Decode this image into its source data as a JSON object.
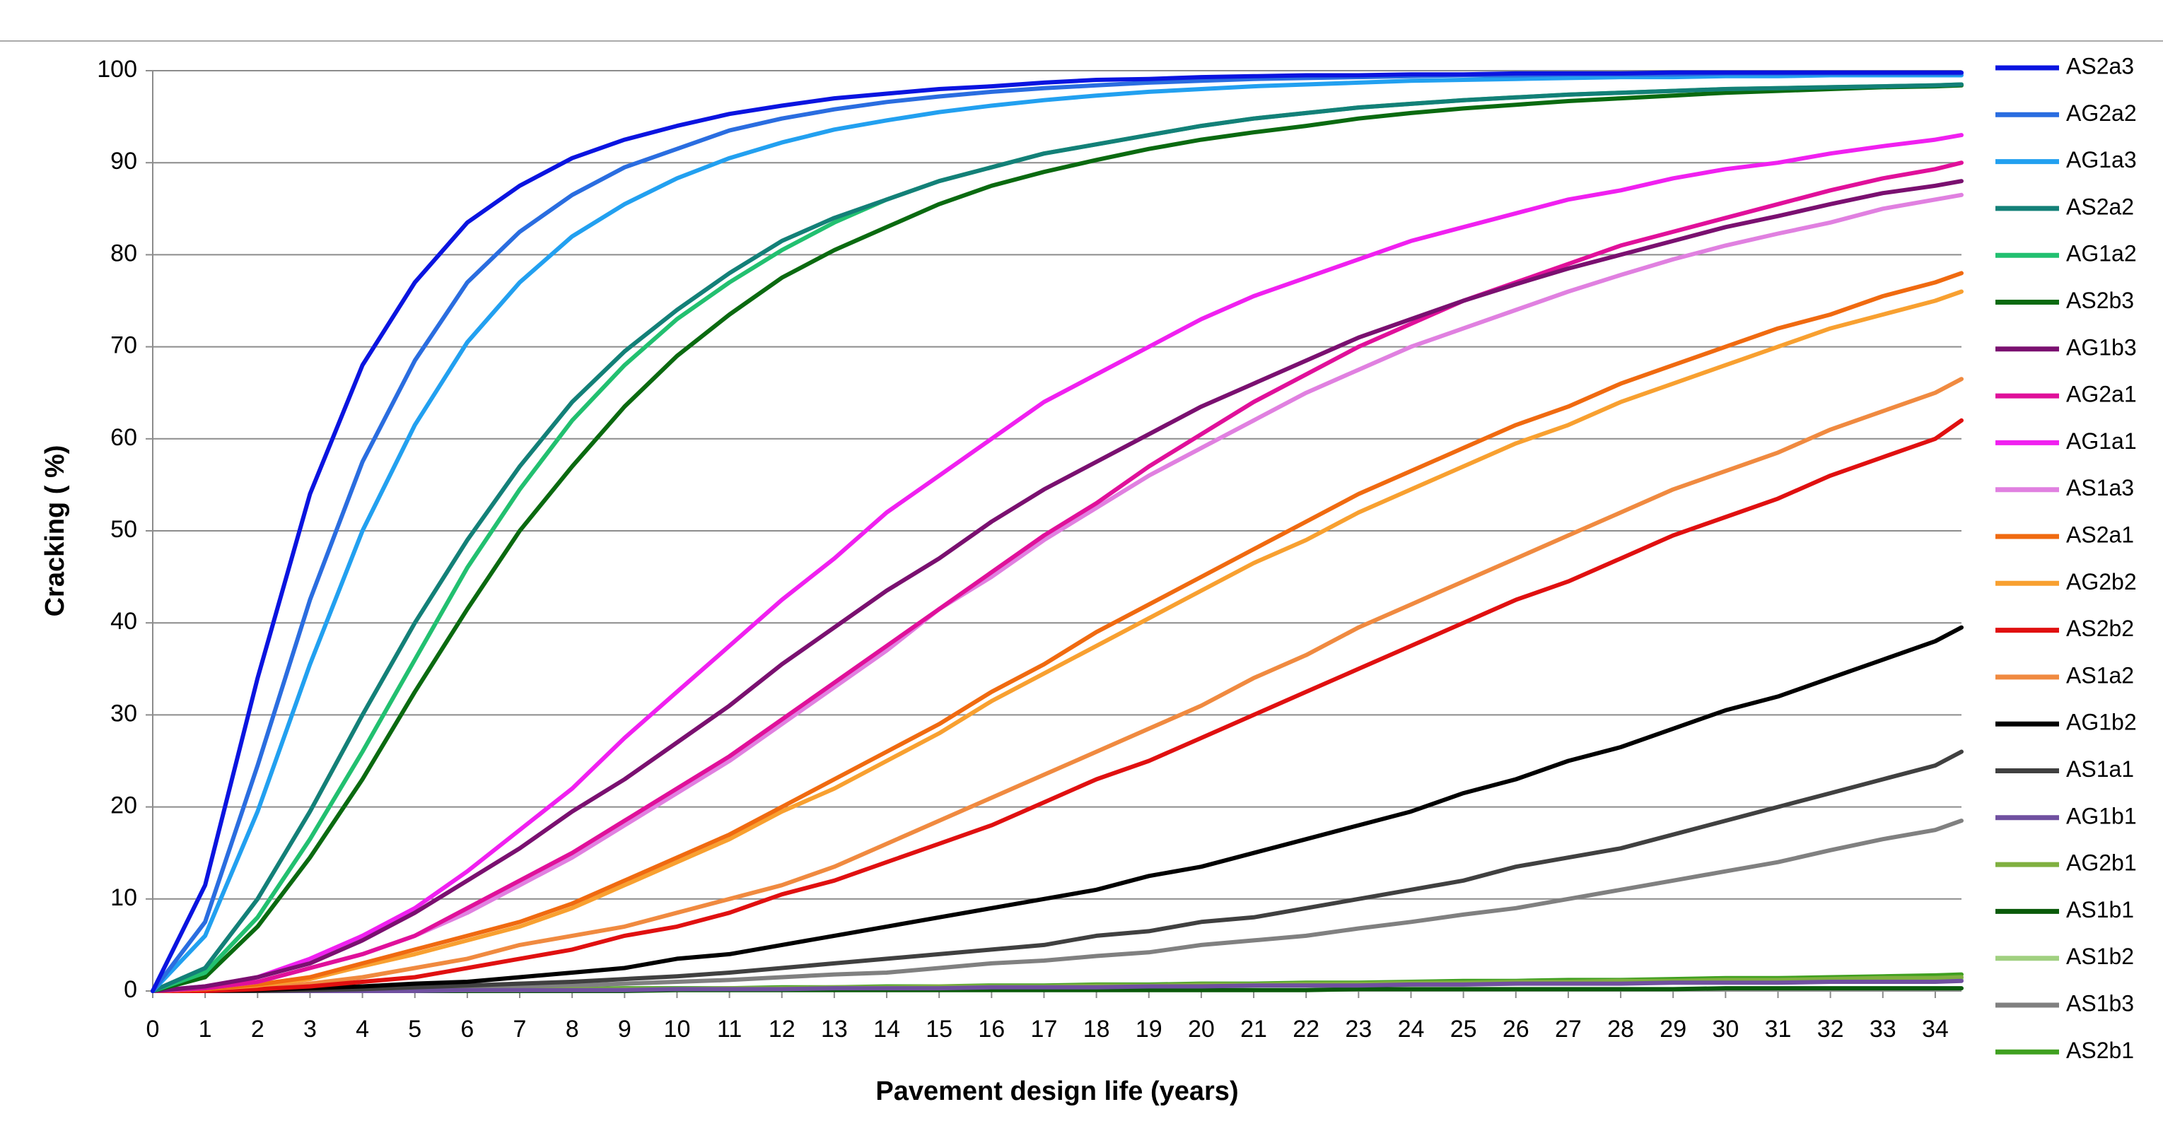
{
  "chart_data": {
    "type": "line",
    "y_label": "Cracking ( %)",
    "x_label": "Pavement design life  (years)",
    "x": [
      0,
      1,
      2,
      3,
      4,
      5,
      6,
      7,
      8,
      9,
      10,
      11,
      12,
      13,
      14,
      15,
      16,
      17,
      18,
      19,
      20,
      21,
      22,
      23,
      24,
      25,
      26,
      27,
      28,
      29,
      30,
      31,
      32,
      33,
      34,
      34.5
    ],
    "xlim": [
      0,
      34.5
    ],
    "xticks": [
      0,
      1,
      2,
      3,
      4,
      5,
      6,
      7,
      8,
      9,
      10,
      11,
      12,
      13,
      14,
      15,
      16,
      17,
      18,
      19,
      20,
      21,
      22,
      23,
      24,
      25,
      26,
      27,
      28,
      29,
      30,
      31,
      32,
      33,
      34
    ],
    "ylim": [
      0,
      100
    ],
    "yticks": [
      0,
      10,
      20,
      30,
      40,
      50,
      60,
      70,
      80,
      90,
      100
    ],
    "grid": true,
    "legend": "right",
    "series": [
      {
        "name": "AS2a3",
        "color": "#0a14e0",
        "values": [
          0,
          11.5,
          34,
          54,
          68,
          77,
          83.5,
          87.5,
          90.5,
          92.5,
          94,
          95.3,
          96.2,
          97,
          97.5,
          98,
          98.3,
          98.7,
          99,
          99.1,
          99.3,
          99.4,
          99.5,
          99.5,
          99.6,
          99.6,
          99.7,
          99.7,
          99.7,
          99.8,
          99.8,
          99.8,
          99.8,
          99.8,
          99.8,
          99.8
        ]
      },
      {
        "name": "AG2a2",
        "color": "#2a6de0",
        "values": [
          0,
          7.5,
          24.5,
          42.5,
          57.5,
          68.5,
          77,
          82.5,
          86.5,
          89.5,
          91.5,
          93.5,
          94.8,
          95.8,
          96.6,
          97.2,
          97.7,
          98.1,
          98.4,
          98.7,
          98.9,
          99.1,
          99.2,
          99.3,
          99.4,
          99.5,
          99.5,
          99.6,
          99.6,
          99.6,
          99.7,
          99.7,
          99.7,
          99.7,
          99.7,
          99.7
        ]
      },
      {
        "name": "AG1a3",
        "color": "#22a0f0",
        "values": [
          0,
          6,
          19.5,
          35.5,
          50,
          61.5,
          70.5,
          77,
          82,
          85.5,
          88.3,
          90.5,
          92.2,
          93.6,
          94.6,
          95.5,
          96.2,
          96.8,
          97.3,
          97.7,
          98,
          98.3,
          98.5,
          98.7,
          98.9,
          99,
          99.1,
          99.2,
          99.3,
          99.3,
          99.4,
          99.4,
          99.5,
          99.5,
          99.5,
          99.5
        ]
      },
      {
        "name": "AS2a2",
        "color": "#138078",
        "values": [
          0,
          2.5,
          10,
          19.5,
          30,
          40,
          49,
          57,
          64,
          69.5,
          74,
          78,
          81.5,
          84,
          86,
          88,
          89.5,
          91,
          92,
          93,
          94,
          94.8,
          95.4,
          96,
          96.4,
          96.8,
          97.1,
          97.4,
          97.6,
          97.8,
          98,
          98.1,
          98.2,
          98.3,
          98.4,
          98.5
        ]
      },
      {
        "name": "AG1a2",
        "color": "#22c070",
        "values": [
          0,
          2,
          8,
          16.5,
          26,
          36,
          46,
          54.5,
          62,
          68,
          73,
          77,
          80.5,
          83.5,
          86,
          88,
          89.5,
          91,
          92,
          93,
          94,
          94.8,
          95.4,
          96,
          96.4,
          96.8,
          97.1,
          97.4,
          97.6,
          97.8,
          98,
          98.1,
          98.2,
          98.3,
          98.4,
          98.5
        ]
      },
      {
        "name": "AS2b3",
        "color": "#0a6a10",
        "values": [
          0,
          1.5,
          7,
          14.5,
          23,
          32.5,
          41.5,
          50,
          57,
          63.5,
          69,
          73.5,
          77.5,
          80.5,
          83,
          85.5,
          87.5,
          89,
          90.3,
          91.5,
          92.5,
          93.3,
          94,
          94.8,
          95.4,
          95.9,
          96.3,
          96.7,
          97,
          97.3,
          97.6,
          97.8,
          98,
          98.2,
          98.3,
          98.4
        ]
      },
      {
        "name": "AG1b3",
        "color": "#7a1070",
        "values": [
          0,
          0.5,
          1.5,
          3,
          5.5,
          8.5,
          12,
          15.5,
          19.5,
          23,
          27,
          31,
          35.5,
          39.5,
          43.5,
          47,
          51,
          54.5,
          57.5,
          60.5,
          63.5,
          66,
          68.5,
          71,
          73,
          75,
          76.8,
          78.5,
          80,
          81.5,
          83,
          84.2,
          85.5,
          86.7,
          87.5,
          88
        ]
      },
      {
        "name": "AG2a1",
        "color": "#e0109a",
        "values": [
          0,
          0.3,
          1,
          2.5,
          4,
          6,
          9,
          12,
          15,
          18.5,
          22,
          25.5,
          29.5,
          33.5,
          37.5,
          41.5,
          45.5,
          49.5,
          53,
          57,
          60.5,
          64,
          67,
          70,
          72.5,
          75,
          77,
          79,
          81,
          82.5,
          84,
          85.5,
          87,
          88.3,
          89.3,
          90
        ]
      },
      {
        "name": "AG1a1",
        "color": "#f020f0",
        "values": [
          0,
          0.5,
          1.5,
          3.5,
          6,
          9,
          13,
          17.5,
          22,
          27.5,
          32.5,
          37.5,
          42.5,
          47,
          52,
          56,
          60,
          64,
          67,
          70,
          73,
          75.5,
          77.5,
          79.5,
          81.5,
          83,
          84.5,
          86,
          87,
          88.3,
          89.3,
          90,
          91,
          91.8,
          92.5,
          93
        ]
      },
      {
        "name": "AS1a3",
        "color": "#e080e0",
        "values": [
          0,
          0.3,
          1,
          2.5,
          4,
          6,
          8.5,
          11.5,
          14.5,
          18,
          21.5,
          25,
          29,
          33,
          37,
          41.5,
          45,
          49,
          52.5,
          56,
          59,
          62,
          65,
          67.5,
          70,
          72,
          74,
          76,
          77.8,
          79.5,
          81,
          82.3,
          83.5,
          85,
          86,
          86.5
        ]
      },
      {
        "name": "AS2a1",
        "color": "#f06a10",
        "values": [
          0,
          0.2,
          0.7,
          1.5,
          3,
          4.5,
          6,
          7.5,
          9.5,
          12,
          14.5,
          17,
          20,
          23,
          26,
          29,
          32.5,
          35.5,
          39,
          42,
          45,
          48,
          51,
          54,
          56.5,
          59,
          61.5,
          63.5,
          66,
          68,
          70,
          72,
          73.5,
          75.5,
          77,
          78
        ]
      },
      {
        "name": "AG2b2",
        "color": "#f8a030",
        "values": [
          0,
          0.2,
          0.6,
          1.3,
          2.7,
          4,
          5.5,
          7,
          9,
          11.5,
          14,
          16.5,
          19.5,
          22,
          25,
          28,
          31.5,
          34.5,
          37.5,
          40.5,
          43.5,
          46.5,
          49,
          52,
          54.5,
          57,
          59.5,
          61.5,
          64,
          66,
          68,
          70,
          72,
          73.5,
          75,
          76
        ]
      },
      {
        "name": "AS2b2",
        "color": "#e01010",
        "values": [
          0,
          0,
          0.2,
          0.5,
          1,
          1.5,
          2.5,
          3.5,
          4.5,
          6,
          7,
          8.5,
          10.5,
          12,
          14,
          16,
          18,
          20.5,
          23,
          25,
          27.5,
          30,
          32.5,
          35,
          37.5,
          40,
          42.5,
          44.5,
          47,
          49.5,
          51.5,
          53.5,
          56,
          58,
          60,
          62
        ]
      },
      {
        "name": "AS1a2",
        "color": "#f08a40",
        "values": [
          0,
          0.1,
          0.3,
          0.8,
          1.5,
          2.5,
          3.5,
          5,
          6,
          7,
          8.5,
          10,
          11.5,
          13.5,
          16,
          18.5,
          21,
          23.5,
          26,
          28.5,
          31,
          34,
          36.5,
          39.5,
          42,
          44.5,
          47,
          49.5,
          52,
          54.5,
          56.5,
          58.5,
          61,
          63,
          65,
          66.5
        ]
      },
      {
        "name": "AG1b2",
        "color": "#000000",
        "values": [
          0,
          0,
          0.1,
          0.3,
          0.5,
          0.8,
          1,
          1.5,
          2,
          2.5,
          3.5,
          4,
          5,
          6,
          7,
          8,
          9,
          10,
          11,
          12.5,
          13.5,
          15,
          16.5,
          18,
          19.5,
          21.5,
          23,
          25,
          26.5,
          28.5,
          30.5,
          32,
          34,
          36,
          38,
          39.5
        ]
      },
      {
        "name": "AS1a1",
        "color": "#404040",
        "values": [
          0,
          0,
          0,
          0.1,
          0.2,
          0.4,
          0.6,
          0.8,
          1,
          1.3,
          1.6,
          2,
          2.5,
          3,
          3.5,
          4,
          4.5,
          5,
          6,
          6.5,
          7.5,
          8,
          9,
          10,
          11,
          12,
          13.5,
          14.5,
          15.5,
          17,
          18.5,
          20,
          21.5,
          23,
          24.5,
          26
        ]
      },
      {
        "name": "AG1b1",
        "color": "#7050a0",
        "values": [
          0,
          0,
          0,
          0,
          0,
          0,
          0.1,
          0.1,
          0.1,
          0.1,
          0.2,
          0.2,
          0.2,
          0.3,
          0.3,
          0.3,
          0.4,
          0.4,
          0.4,
          0.5,
          0.5,
          0.6,
          0.6,
          0.6,
          0.7,
          0.7,
          0.8,
          0.8,
          0.8,
          0.9,
          0.9,
          0.9,
          1,
          1,
          1,
          1.1
        ]
      },
      {
        "name": "AG2b1",
        "color": "#80b040",
        "values": [
          0,
          0,
          0,
          0,
          0,
          0.1,
          0.1,
          0.1,
          0.2,
          0.2,
          0.2,
          0.3,
          0.3,
          0.4,
          0.4,
          0.5,
          0.5,
          0.5,
          0.6,
          0.6,
          0.7,
          0.7,
          0.8,
          0.8,
          0.9,
          0.9,
          1,
          1,
          1.1,
          1.1,
          1.2,
          1.2,
          1.3,
          1.4,
          1.4,
          1.5
        ]
      },
      {
        "name": "AS1b1",
        "color": "#0a5a0a",
        "values": [
          0,
          0,
          0,
          0,
          0,
          0,
          0,
          0,
          0,
          0,
          0.1,
          0.1,
          0.1,
          0.1,
          0.1,
          0.1,
          0.1,
          0.1,
          0.1,
          0.1,
          0.1,
          0.1,
          0.1,
          0.2,
          0.2,
          0.2,
          0.2,
          0.2,
          0.2,
          0.2,
          0.3,
          0.3,
          0.3,
          0.3,
          0.3,
          0.3
        ]
      },
      {
        "name": "AS1b2",
        "color": "#a0d080",
        "values": [
          0,
          0,
          0,
          0,
          0,
          0,
          0.1,
          0.1,
          0.1,
          0.2,
          0.2,
          0.2,
          0.3,
          0.3,
          0.3,
          0.4,
          0.4,
          0.4,
          0.5,
          0.5,
          0.6,
          0.6,
          0.7,
          0.7,
          0.7,
          0.8,
          0.8,
          0.9,
          0.9,
          1,
          1,
          1.1,
          1.1,
          1.2,
          1.2,
          1.3
        ]
      },
      {
        "name": "AS1b3",
        "color": "#808080",
        "values": [
          0,
          0,
          0,
          0,
          0.1,
          0.2,
          0.3,
          0.4,
          0.6,
          0.8,
          1,
          1.2,
          1.5,
          1.8,
          2,
          2.5,
          3,
          3.3,
          3.8,
          4.2,
          5,
          5.5,
          6,
          6.8,
          7.5,
          8.3,
          9,
          10,
          11,
          12,
          13,
          14,
          15.3,
          16.5,
          17.5,
          18.5
        ]
      },
      {
        "name": "AS2b1",
        "color": "#40a020",
        "values": [
          0,
          0,
          0,
          0,
          0.1,
          0.1,
          0.1,
          0.2,
          0.2,
          0.3,
          0.3,
          0.3,
          0.4,
          0.4,
          0.5,
          0.5,
          0.6,
          0.6,
          0.7,
          0.7,
          0.8,
          0.8,
          0.9,
          0.9,
          1,
          1.1,
          1.1,
          1.2,
          1.2,
          1.3,
          1.4,
          1.4,
          1.5,
          1.6,
          1.7,
          1.8
        ]
      }
    ]
  }
}
